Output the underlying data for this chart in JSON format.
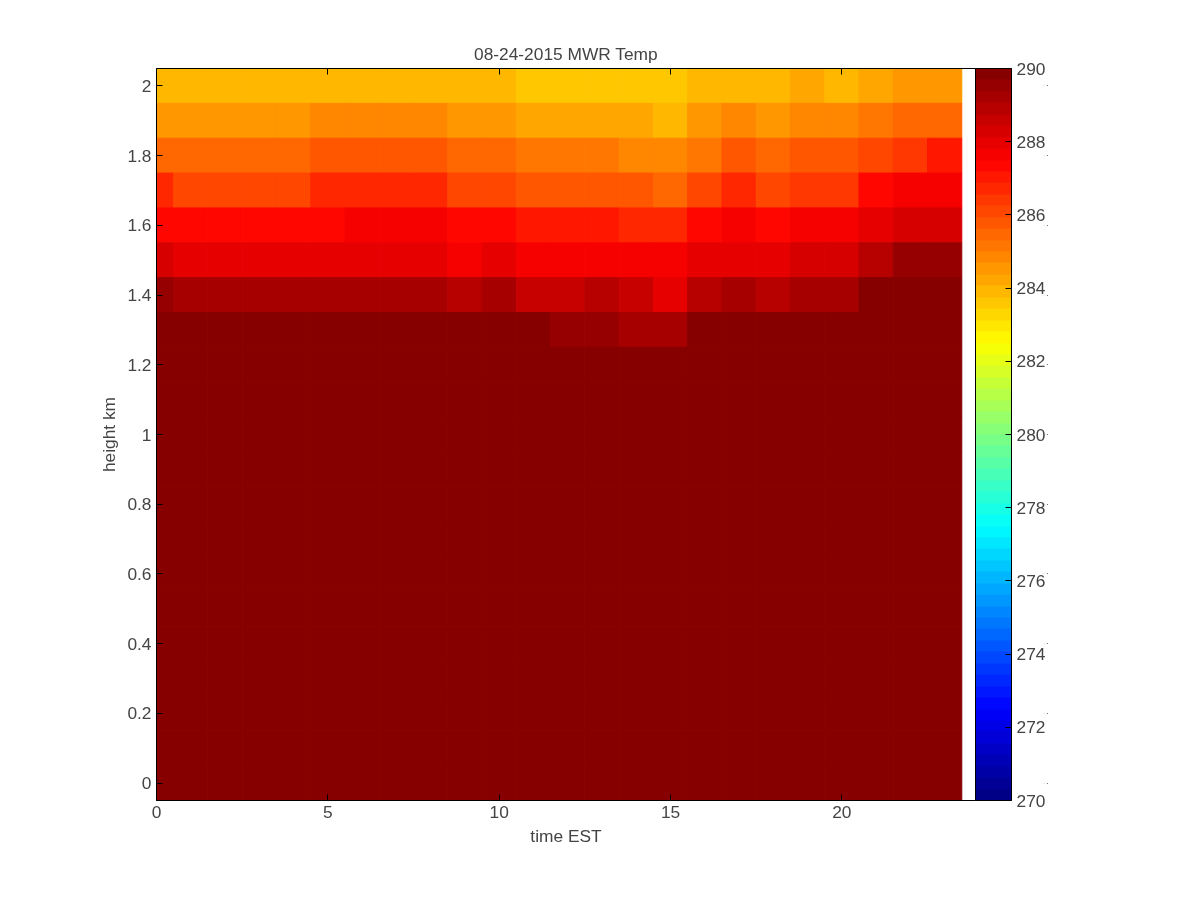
{
  "chart_data": {
    "type": "heatmap",
    "title": "08-24-2015 MWR Temp",
    "xlabel": "time EST",
    "ylabel": "height km",
    "x": [
      0,
      1,
      2,
      3,
      4,
      5,
      6,
      7,
      8,
      9,
      10,
      11,
      12,
      13,
      14,
      15,
      16,
      17,
      18,
      19,
      20,
      21,
      22,
      23
    ],
    "y_categories": [
      "2",
      null,
      "1.8",
      null,
      "1.6",
      null,
      "1.4",
      null,
      "1.2",
      null,
      "1",
      null,
      "0.8",
      null,
      "0.6",
      null,
      "0.4",
      null,
      "0.2",
      null,
      "0"
    ],
    "cells": [
      [
        283.8,
        283.8,
        283.8,
        283.8,
        283.8,
        284,
        284,
        284,
        284,
        283.8,
        283.8,
        283.5,
        283.5,
        283.5,
        283.5,
        283.5,
        284,
        284,
        283.8,
        284.2,
        284,
        284.2,
        284.5,
        284.5
      ],
      [
        284.6,
        284.5,
        284.5,
        284.5,
        284.5,
        284.8,
        284.8,
        284.8,
        284.8,
        284.6,
        284.6,
        284.3,
        284.3,
        284.3,
        284.3,
        284,
        284.4,
        284.8,
        284.5,
        284.7,
        284.7,
        285.1,
        285.5,
        285.5
      ],
      [
        285.5,
        285.5,
        285.5,
        285.5,
        285.5,
        285.8,
        285.8,
        285.8,
        285.8,
        285.5,
        285.5,
        285.2,
        285.3,
        285.3,
        284.8,
        284.8,
        285.2,
        285.7,
        285.4,
        285.8,
        285.8,
        286.2,
        286.4,
        286.9
      ],
      [
        286.6,
        286.2,
        286.2,
        286.2,
        286.2,
        286.6,
        286.6,
        286.6,
        286.6,
        286.2,
        286.2,
        285.9,
        285.9,
        285.9,
        285.9,
        285.5,
        286.2,
        286.6,
        286.2,
        286.5,
        286.5,
        287.2,
        287.5,
        287.5
      ],
      [
        287.3,
        287.2,
        287.2,
        287.2,
        287.2,
        287.2,
        287.5,
        287.5,
        287.5,
        287.2,
        287.2,
        286.9,
        286.9,
        286.9,
        286.6,
        286.6,
        287.3,
        287.5,
        287.2,
        287.5,
        287.5,
        287.9,
        288.4,
        288.4
      ],
      [
        288.4,
        288.1,
        288.1,
        288.1,
        288.1,
        288.1,
        288.1,
        288.1,
        288.1,
        287.8,
        288.1,
        287.5,
        287.5,
        287.5,
        287.5,
        287.5,
        288.1,
        288.1,
        288.1,
        288.2,
        288.2,
        288.8,
        289.4,
        289.4
      ],
      [
        289.4,
        289.1,
        289.1,
        289.1,
        289.1,
        289.1,
        289.1,
        289.1,
        289.1,
        288.8,
        289.2,
        288.6,
        288.6,
        288.9,
        288.5,
        288.1,
        288.8,
        289.2,
        288.8,
        289.1,
        289.1,
        289.7,
        290,
        290
      ],
      [
        290,
        290,
        290,
        290,
        290,
        290,
        289.7,
        290,
        290,
        289.7,
        290,
        289.7,
        289.5,
        289.5,
        289.2,
        289.2,
        289.7,
        290,
        289.7,
        290,
        290,
        290,
        290,
        290
      ],
      [
        290,
        290,
        290,
        290,
        290,
        290,
        290,
        290,
        290,
        290,
        290,
        290,
        290,
        290,
        290,
        289.7,
        290,
        290,
        290,
        290,
        290,
        290,
        290,
        290
      ],
      [
        290,
        290,
        290,
        290,
        290,
        290,
        290,
        290,
        290,
        290,
        290,
        290,
        290,
        290,
        290,
        290,
        290,
        290,
        290,
        290,
        290,
        290,
        290,
        290
      ],
      [
        290,
        290,
        290,
        290,
        290,
        290,
        290,
        290,
        290,
        290,
        290,
        290,
        290,
        290,
        290,
        290,
        290,
        290,
        290,
        290,
        290,
        290,
        290,
        290
      ],
      [
        290,
        290,
        290,
        290,
        290,
        290,
        290,
        290,
        290,
        290,
        290,
        290,
        290,
        290,
        290,
        290,
        290,
        290,
        290,
        290,
        290,
        290,
        290,
        290
      ],
      [
        290,
        290,
        290,
        290,
        290,
        290,
        290,
        290,
        290,
        290,
        290,
        290,
        290,
        290,
        290,
        290,
        290,
        290,
        290,
        290,
        290,
        290,
        290,
        290
      ],
      [
        290,
        290,
        290,
        290,
        290,
        290,
        290,
        290,
        290,
        290,
        290,
        290,
        290,
        290,
        290,
        290,
        290,
        290,
        290,
        290,
        290,
        290,
        290,
        290
      ],
      [
        290,
        290,
        290,
        290,
        290,
        290,
        290,
        290,
        290,
        290,
        290,
        290,
        290,
        290,
        290,
        290,
        290,
        290,
        290,
        290,
        290,
        290,
        290,
        290
      ],
      [
        290,
        290,
        290,
        290,
        290,
        290,
        290,
        290,
        290,
        290,
        290,
        290,
        290,
        290,
        290,
        290,
        290,
        290,
        290,
        290,
        290,
        290,
        290,
        290
      ],
      [
        290,
        290,
        290,
        290,
        290,
        290,
        290,
        290,
        290,
        290,
        290,
        290,
        290,
        290,
        290,
        290,
        290,
        290,
        290,
        290,
        290,
        290,
        290,
        290
      ],
      [
        290,
        290,
        290,
        290,
        290,
        290,
        290,
        290,
        290,
        290,
        290,
        290,
        290,
        290,
        290,
        290,
        290,
        290,
        290,
        290,
        290,
        290,
        290,
        290
      ],
      [
        290,
        290,
        290,
        290,
        290,
        290,
        290,
        290,
        290,
        290,
        290,
        290,
        290,
        290,
        290,
        290,
        290,
        290,
        290,
        290,
        290,
        290,
        290,
        290
      ],
      [
        290,
        290,
        290,
        290,
        290,
        290,
        290,
        290,
        290,
        290,
        290,
        290,
        290,
        290,
        290,
        290,
        290,
        290,
        290,
        290,
        290,
        290,
        290,
        290
      ],
      [
        290,
        290,
        290,
        290,
        290,
        290,
        290,
        290,
        290,
        290,
        290,
        290,
        290,
        290,
        290,
        290,
        290,
        290,
        290,
        290,
        290,
        290,
        290,
        290
      ]
    ],
    "clim": [
      270,
      290
    ],
    "cticks": [
      270,
      272,
      274,
      276,
      278,
      280,
      282,
      284,
      286,
      288,
      290
    ],
    "xlim": [
      0,
      23.9
    ],
    "xticks": [
      0,
      5,
      10,
      15,
      20
    ]
  }
}
